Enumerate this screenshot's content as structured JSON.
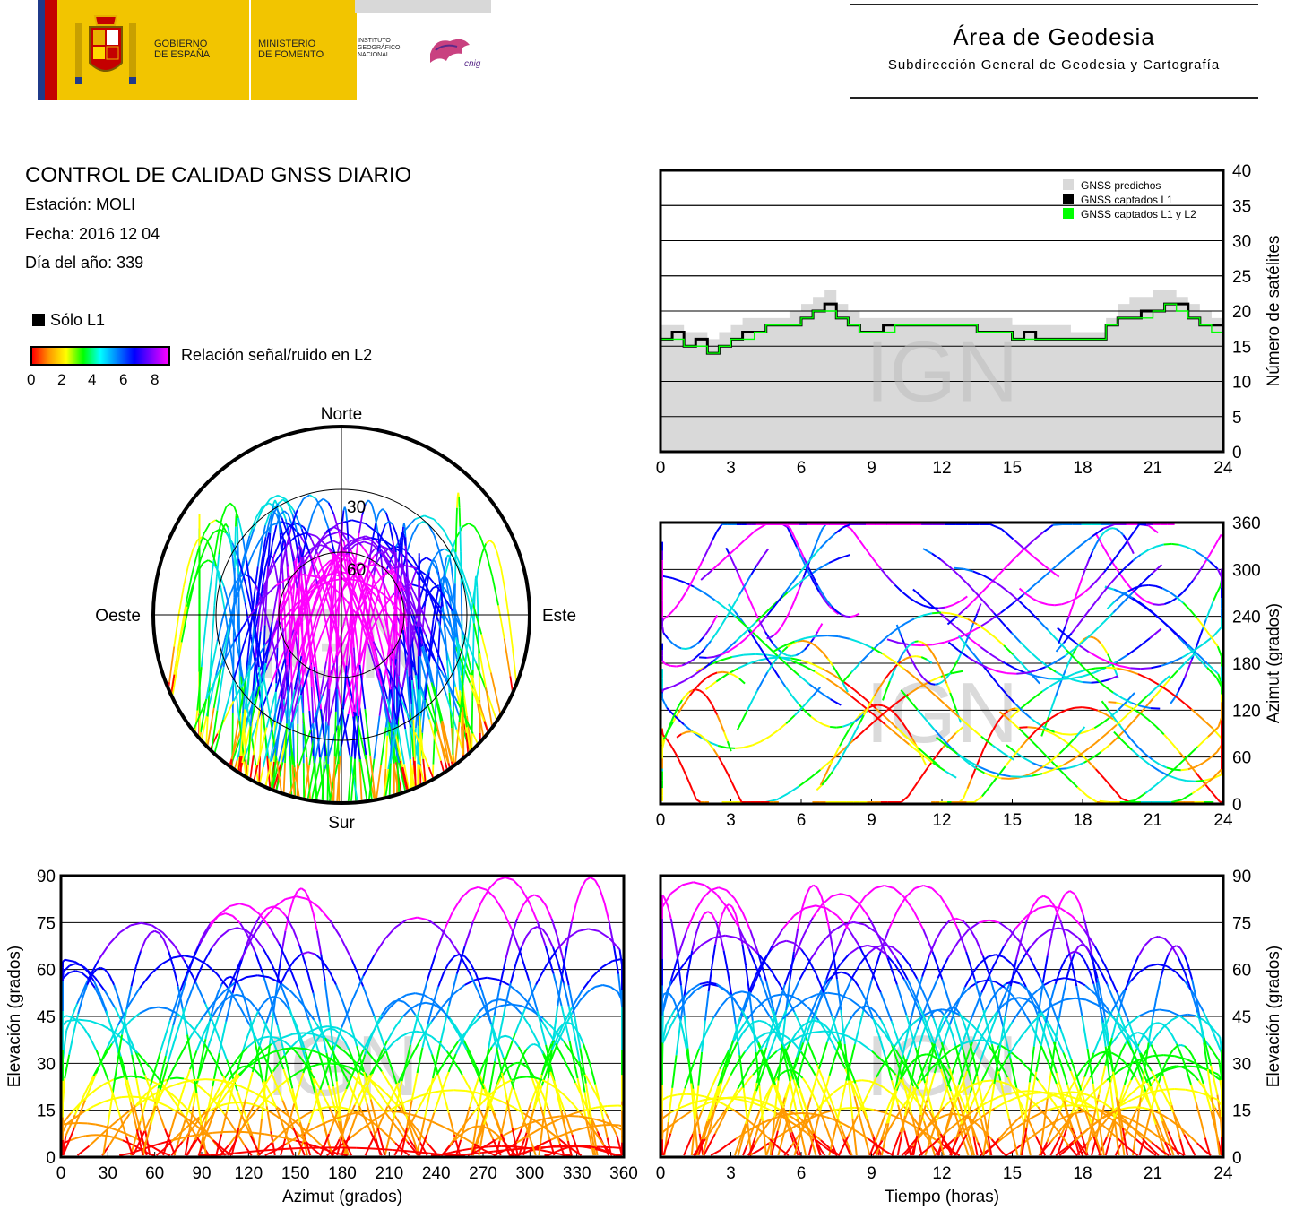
{
  "header": {
    "gobierno": "GOBIERNO\nDE ESPAÑA",
    "ministerio": "MINISTERIO\nDE FOMENTO",
    "instituto": "INSTITUTO\nGEOGRÁFICO\nNACIONAL",
    "cnig": "cnig",
    "area_title": "Área de Geodesia",
    "area_subtitle": "Subdirección General de Geodesia y Cartografía"
  },
  "report": {
    "title": "CONTROL DE CALIDAD GNSS DIARIO",
    "station": "Estación: MOLI",
    "date": "Fecha: 2016 12 04",
    "doy": "Día del año: 339",
    "legend_l1": "Sólo L1",
    "snr_label": "Relación señal/ruido en L2",
    "snr_ticks": [
      "0",
      "2",
      "4",
      "6",
      "8"
    ]
  },
  "colors": {
    "magenta": "#ff00ff",
    "violet": "#8000ff",
    "blue": "#0000ff",
    "azure": "#0080ff",
    "cyan": "#00e0e0",
    "green": "#00ff00",
    "yellow": "#ffff00",
    "orange": "#ff9900",
    "red": "#ff0000",
    "predicted": "#d9d9d9",
    "captured_l1": "#000000",
    "captured_l1l2": "#00ff00"
  },
  "watermark": "IGN",
  "chart_data": [
    {
      "id": "satellite_count",
      "type": "area",
      "ylabel": "Número de satélites",
      "xlim": [
        0,
        24
      ],
      "ylim": [
        0,
        40
      ],
      "xticks": [
        "0",
        "3",
        "6",
        "9",
        "12",
        "15",
        "18",
        "21",
        "24"
      ],
      "yticks": [
        "0",
        "5",
        "10",
        "15",
        "20",
        "25",
        "30",
        "35",
        "40"
      ],
      "grid": true,
      "legend": "top-right",
      "legend_entries": [
        "GNSS predichos",
        "GNSS captados L1",
        "GNSS captados L1 y L2"
      ],
      "x": [
        0,
        0.5,
        1,
        1.5,
        2,
        2.5,
        3,
        3.5,
        4,
        4.5,
        5,
        5.5,
        6,
        6.5,
        7,
        7.5,
        8,
        8.5,
        9,
        9.5,
        10,
        10.5,
        11,
        11.5,
        12,
        12.5,
        13,
        13.5,
        14,
        14.5,
        15,
        15.5,
        16,
        16.5,
        17,
        17.5,
        18,
        18.5,
        19,
        19.5,
        20,
        20.5,
        21,
        21.5,
        22,
        22.5,
        23,
        23.5,
        24
      ],
      "series": [
        {
          "name": "GNSS predichos",
          "values": [
            18,
            18,
            17,
            17,
            16,
            17,
            18,
            19,
            19,
            19,
            19,
            20,
            21,
            22,
            23,
            21,
            20,
            19,
            19,
            19,
            19,
            19,
            19,
            19,
            19,
            19,
            19,
            19,
            19,
            19,
            18,
            18,
            18,
            18,
            18,
            17,
            17,
            17,
            19,
            21,
            22,
            22,
            23,
            23,
            22,
            21,
            20,
            19,
            18
          ]
        },
        {
          "name": "GNSS captados L1",
          "values": [
            16,
            17,
            15,
            16,
            14,
            15,
            16,
            17,
            17,
            18,
            18,
            18,
            19,
            20,
            21,
            19,
            18,
            17,
            17,
            18,
            18,
            18,
            18,
            18,
            18,
            18,
            18,
            17,
            17,
            17,
            16,
            17,
            16,
            16,
            16,
            16,
            16,
            16,
            18,
            19,
            19,
            20,
            20,
            21,
            21,
            19,
            18,
            18,
            16
          ]
        },
        {
          "name": "GNSS captados L1 y L2",
          "values": [
            16,
            16,
            15,
            15,
            14,
            15,
            16,
            16,
            17,
            18,
            18,
            18,
            19,
            20,
            20,
            19,
            18,
            17,
            17,
            17,
            18,
            18,
            18,
            18,
            18,
            18,
            18,
            17,
            17,
            17,
            16,
            16,
            16,
            16,
            16,
            16,
            16,
            16,
            18,
            19,
            19,
            19,
            20,
            21,
            20,
            19,
            18,
            17,
            16
          ]
        }
      ]
    },
    {
      "id": "skyplot",
      "type": "scatter",
      "projection": "polar",
      "direction_labels": [
        "Norte",
        "Este",
        "Sur",
        "Oeste"
      ],
      "ring_labels": [
        "30",
        "60"
      ],
      "rings_elevation": [
        30,
        60
      ],
      "tracks_note": "satellite tracks colored by L2 SNR"
    },
    {
      "id": "azimuth_time",
      "type": "scatter",
      "ylabel": "Azimut (grados)",
      "xlim": [
        0,
        24
      ],
      "ylim": [
        0,
        360
      ],
      "xticks": [
        "0",
        "3",
        "6",
        "9",
        "12",
        "15",
        "18",
        "21",
        "24"
      ],
      "yticks": [
        "0",
        "60",
        "120",
        "180",
        "240",
        "300",
        "360"
      ],
      "grid": true
    },
    {
      "id": "elevation_azimuth",
      "type": "scatter",
      "xlabel": "Azimut (grados)",
      "ylabel": "Elevación (grados)",
      "xlim": [
        0,
        360
      ],
      "ylim": [
        0,
        90
      ],
      "xticks": [
        "0",
        "30",
        "60",
        "90",
        "120",
        "150",
        "180",
        "210",
        "240",
        "270",
        "300",
        "330",
        "360"
      ],
      "yticks": [
        "0",
        "15",
        "30",
        "45",
        "60",
        "75",
        "90"
      ],
      "grid": true
    },
    {
      "id": "elevation_time",
      "type": "scatter",
      "xlabel": "Tiempo (horas)",
      "ylabel": "Elevación (grados)",
      "xlim": [
        0,
        24
      ],
      "ylim": [
        0,
        90
      ],
      "xticks": [
        "0",
        "3",
        "6",
        "9",
        "12",
        "15",
        "18",
        "21",
        "24"
      ],
      "yticks": [
        "0",
        "15",
        "30",
        "45",
        "60",
        "75",
        "90"
      ],
      "grid": true
    }
  ]
}
